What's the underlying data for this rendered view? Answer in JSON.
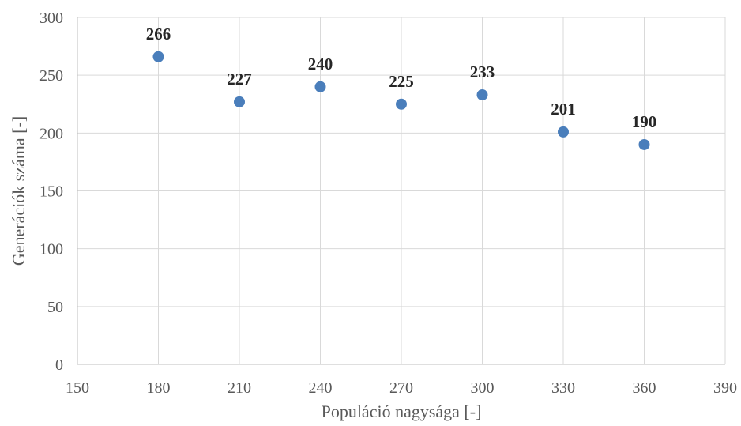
{
  "chart_data": {
    "type": "scatter",
    "xlabel": "Populáció nagysága [-]",
    "ylabel": "Generációk száma [-]",
    "xlim": [
      150,
      390
    ],
    "ylim": [
      0,
      300
    ],
    "xticks": [
      150,
      180,
      210,
      240,
      270,
      300,
      330,
      360,
      390
    ],
    "yticks": [
      0,
      50,
      100,
      150,
      200,
      250,
      300
    ],
    "grid": true,
    "point_color": "#4a7ebb",
    "x": [
      180,
      210,
      240,
      270,
      300,
      330,
      360
    ],
    "y": [
      266,
      227,
      240,
      225,
      233,
      201,
      190
    ],
    "data_labels": [
      "266",
      "227",
      "240",
      "225",
      "233",
      "201",
      "190"
    ]
  }
}
